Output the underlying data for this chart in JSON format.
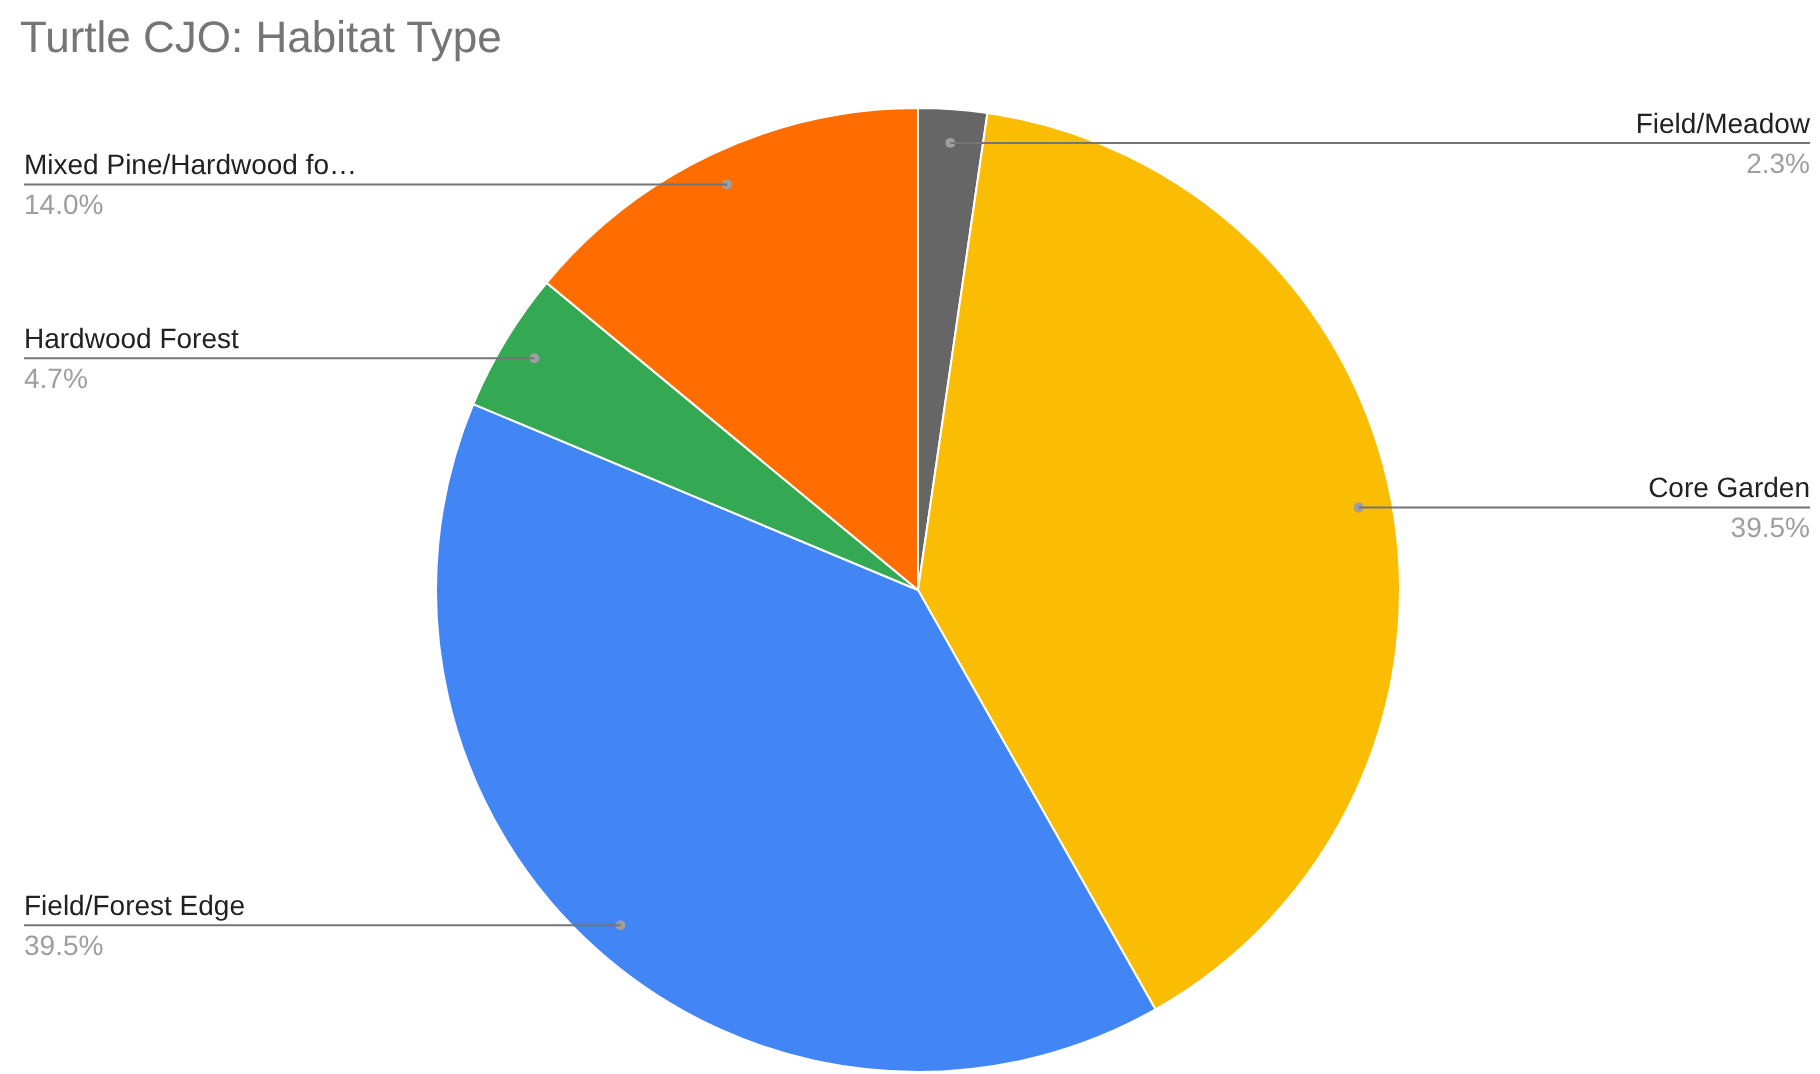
{
  "chart_data": {
    "type": "pie",
    "title": "Turtle CJO: Habitat Type",
    "categories": [
      "Field/Meadow",
      "Core Garden",
      "Field/Forest Edge",
      "Hardwood Forest",
      "Mixed Pine/Hardwood fo…"
    ],
    "values": [
      2.3,
      39.5,
      39.5,
      4.7,
      14.0
    ],
    "value_labels": [
      "2.3%",
      "39.5%",
      "39.5%",
      "4.7%",
      "14.0%"
    ],
    "colors": [
      "#666666",
      "#fbbc04",
      "#4285f4",
      "#34a853",
      "#ff6d01"
    ]
  }
}
